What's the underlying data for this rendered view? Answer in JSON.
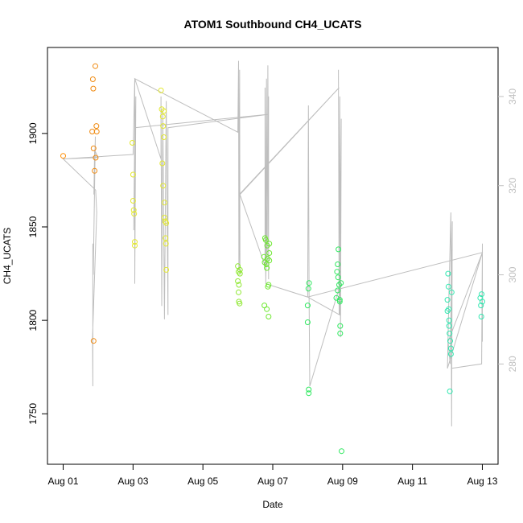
{
  "chart_data": {
    "type": "scatter",
    "title": "ATOM1 Southbound CH4_UCATS",
    "xlabel": "Date",
    "ylabel": "CH4_UCATS",
    "x_ticks": [
      "Aug 01",
      "Aug 03",
      "Aug 05",
      "Aug 07",
      "Aug 09",
      "Aug 11",
      "Aug 13"
    ],
    "x_tick_days": [
      1,
      3,
      5,
      7,
      9,
      11,
      13
    ],
    "xlim": [
      0.55,
      13.45
    ],
    "ylim": [
      1723,
      1946
    ],
    "y_ticks": [
      1750,
      1800,
      1850,
      1900
    ],
    "y2lim": [
      257.5,
      351
    ],
    "y2_ticks": [
      280,
      300,
      320,
      340
    ],
    "line_color": "#bebebe",
    "points": [
      {
        "x": 1.0,
        "y": 1888,
        "color": "#ff8c00"
      },
      {
        "x": 1.83,
        "y": 1901,
        "color": "#f08a10"
      },
      {
        "x": 1.85,
        "y": 1929,
        "color": "#f08a10"
      },
      {
        "x": 1.86,
        "y": 1924,
        "color": "#f08a10"
      },
      {
        "x": 1.87,
        "y": 1892,
        "color": "#f08a10"
      },
      {
        "x": 1.9,
        "y": 1880,
        "color": "#f08a10"
      },
      {
        "x": 1.92,
        "y": 1936,
        "color": "#f08a10"
      },
      {
        "x": 1.93,
        "y": 1887,
        "color": "#f08a10"
      },
      {
        "x": 1.95,
        "y": 1904,
        "color": "#f08a10"
      },
      {
        "x": 1.96,
        "y": 1901,
        "color": "#f08a10"
      },
      {
        "x": 1.87,
        "y": 1789,
        "color": "#f08a10"
      },
      {
        "x": 2.98,
        "y": 1895,
        "color": "#e3e830"
      },
      {
        "x": 3.0,
        "y": 1878,
        "color": "#e3e830"
      },
      {
        "x": 3.0,
        "y": 1864,
        "color": "#e3e830"
      },
      {
        "x": 3.02,
        "y": 1859,
        "color": "#e3e830"
      },
      {
        "x": 3.03,
        "y": 1857,
        "color": "#e3e830"
      },
      {
        "x": 3.05,
        "y": 1842,
        "color": "#e3e830"
      },
      {
        "x": 3.05,
        "y": 1840,
        "color": "#e3e830"
      },
      {
        "x": 3.8,
        "y": 1923,
        "color": "#e3e830"
      },
      {
        "x": 3.82,
        "y": 1913,
        "color": "#e3e830"
      },
      {
        "x": 3.85,
        "y": 1909,
        "color": "#e3e830"
      },
      {
        "x": 3.86,
        "y": 1904,
        "color": "#e3e830"
      },
      {
        "x": 3.88,
        "y": 1898,
        "color": "#e3e830"
      },
      {
        "x": 3.88,
        "y": 1912,
        "color": "#e3e830"
      },
      {
        "x": 3.84,
        "y": 1884,
        "color": "#e3e830"
      },
      {
        "x": 3.86,
        "y": 1872,
        "color": "#e3e830"
      },
      {
        "x": 3.9,
        "y": 1863,
        "color": "#e3e830"
      },
      {
        "x": 3.9,
        "y": 1855,
        "color": "#e3e830"
      },
      {
        "x": 3.92,
        "y": 1853,
        "color": "#e3e830"
      },
      {
        "x": 3.93,
        "y": 1844,
        "color": "#e3e830"
      },
      {
        "x": 3.94,
        "y": 1841,
        "color": "#e3e830"
      },
      {
        "x": 3.95,
        "y": 1827,
        "color": "#e3e830"
      },
      {
        "x": 3.95,
        "y": 1852,
        "color": "#e3e830"
      },
      {
        "x": 6.0,
        "y": 1829,
        "color": "#8ee830"
      },
      {
        "x": 6.0,
        "y": 1821,
        "color": "#8ee830"
      },
      {
        "x": 6.02,
        "y": 1826,
        "color": "#8ee830"
      },
      {
        "x": 6.03,
        "y": 1819,
        "color": "#8ee830"
      },
      {
        "x": 6.02,
        "y": 1815,
        "color": "#8ee830"
      },
      {
        "x": 6.03,
        "y": 1810,
        "color": "#8ee830"
      },
      {
        "x": 6.05,
        "y": 1809,
        "color": "#8ee830"
      },
      {
        "x": 6.06,
        "y": 1825,
        "color": "#8ee830"
      },
      {
        "x": 6.06,
        "y": 1827,
        "color": "#8ee830"
      },
      {
        "x": 6.75,
        "y": 1834,
        "color": "#6ee830"
      },
      {
        "x": 6.77,
        "y": 1831,
        "color": "#6ee830"
      },
      {
        "x": 6.78,
        "y": 1844,
        "color": "#6ee830"
      },
      {
        "x": 6.8,
        "y": 1843,
        "color": "#6ee830"
      },
      {
        "x": 6.82,
        "y": 1830,
        "color": "#6ee830"
      },
      {
        "x": 6.83,
        "y": 1828,
        "color": "#6ee830"
      },
      {
        "x": 6.84,
        "y": 1840,
        "color": "#6ee830"
      },
      {
        "x": 6.85,
        "y": 1833,
        "color": "#6ee830"
      },
      {
        "x": 6.86,
        "y": 1818,
        "color": "#6ee830"
      },
      {
        "x": 6.88,
        "y": 1819,
        "color": "#6ee830"
      },
      {
        "x": 6.9,
        "y": 1836,
        "color": "#6ee830"
      },
      {
        "x": 6.9,
        "y": 1832,
        "color": "#6ee830"
      },
      {
        "x": 6.9,
        "y": 1841,
        "color": "#6ee830"
      },
      {
        "x": 6.76,
        "y": 1808,
        "color": "#6ee830"
      },
      {
        "x": 6.83,
        "y": 1806,
        "color": "#6ee830"
      },
      {
        "x": 6.88,
        "y": 1802,
        "color": "#6ee830"
      },
      {
        "x": 8.0,
        "y": 1808,
        "color": "#30e860"
      },
      {
        "x": 8.0,
        "y": 1799,
        "color": "#30e860"
      },
      {
        "x": 8.02,
        "y": 1817,
        "color": "#30e860"
      },
      {
        "x": 8.04,
        "y": 1820,
        "color": "#30e860"
      },
      {
        "x": 8.03,
        "y": 1763,
        "color": "#30e860"
      },
      {
        "x": 8.03,
        "y": 1761,
        "color": "#30e860"
      },
      {
        "x": 8.82,
        "y": 1812,
        "color": "#30e860"
      },
      {
        "x": 8.84,
        "y": 1826,
        "color": "#30e860"
      },
      {
        "x": 8.86,
        "y": 1830,
        "color": "#30e860"
      },
      {
        "x": 8.88,
        "y": 1838,
        "color": "#30e860"
      },
      {
        "x": 8.87,
        "y": 1823,
        "color": "#30e860"
      },
      {
        "x": 8.9,
        "y": 1819,
        "color": "#30e860"
      },
      {
        "x": 8.92,
        "y": 1811,
        "color": "#30e860"
      },
      {
        "x": 8.92,
        "y": 1810,
        "color": "#30e860"
      },
      {
        "x": 8.93,
        "y": 1797,
        "color": "#30e860"
      },
      {
        "x": 8.93,
        "y": 1793,
        "color": "#30e860"
      },
      {
        "x": 8.95,
        "y": 1820,
        "color": "#30e860"
      },
      {
        "x": 8.86,
        "y": 1816,
        "color": "#30e860"
      },
      {
        "x": 8.97,
        "y": 1730,
        "color": "#30e860"
      },
      {
        "x": 12.0,
        "y": 1811,
        "color": "#30e8b0"
      },
      {
        "x": 12.02,
        "y": 1825,
        "color": "#30e8b0"
      },
      {
        "x": 12.03,
        "y": 1818,
        "color": "#30e8b0"
      },
      {
        "x": 12.04,
        "y": 1806,
        "color": "#30e8b0"
      },
      {
        "x": 12.05,
        "y": 1800,
        "color": "#30e8b0"
      },
      {
        "x": 12.05,
        "y": 1797,
        "color": "#30e8b0"
      },
      {
        "x": 12.06,
        "y": 1793,
        "color": "#30e8b0"
      },
      {
        "x": 12.08,
        "y": 1789,
        "color": "#30e8b0"
      },
      {
        "x": 12.1,
        "y": 1785,
        "color": "#30e8b0"
      },
      {
        "x": 12.1,
        "y": 1782,
        "color": "#30e8b0"
      },
      {
        "x": 12.12,
        "y": 1815,
        "color": "#30e8b0"
      },
      {
        "x": 12.0,
        "y": 1805,
        "color": "#30e8b0"
      },
      {
        "x": 12.07,
        "y": 1762,
        "color": "#30e8b0"
      },
      {
        "x": 12.94,
        "y": 1812,
        "color": "#30e8b0"
      },
      {
        "x": 12.96,
        "y": 1808,
        "color": "#30e8b0"
      },
      {
        "x": 12.97,
        "y": 1802,
        "color": "#30e8b0"
      },
      {
        "x": 12.98,
        "y": 1814,
        "color": "#30e8b0"
      },
      {
        "x": 13.0,
        "y": 1810,
        "color": "#30e8b0"
      }
    ],
    "right_axis_line": [
      [
        1.0,
        326
      ],
      [
        2.0,
        326.3
      ],
      [
        1.9,
        328
      ],
      [
        1.88,
        318
      ],
      [
        1.92,
        331
      ],
      [
        1.86,
        300
      ],
      [
        1.85,
        307
      ],
      [
        1.85,
        275
      ],
      [
        1.84,
        286
      ],
      [
        1.96,
        314
      ],
      [
        1.93,
        319
      ],
      [
        1.0,
        326
      ],
      [
        3.0,
        327
      ],
      [
        3.05,
        344
      ],
      [
        3.05,
        298
      ],
      [
        3.08,
        340
      ],
      [
        3.02,
        310
      ],
      [
        3.05,
        333
      ],
      [
        6.87,
        336
      ],
      [
        4.0,
        333
      ],
      [
        4.0,
        291
      ],
      [
        3.95,
        339
      ],
      [
        3.9,
        290
      ],
      [
        3.85,
        337
      ],
      [
        3.82,
        293
      ],
      [
        3.8,
        340
      ],
      [
        3.8,
        326
      ],
      [
        3.05,
        344
      ],
      [
        6.0,
        332
      ],
      [
        6.02,
        348
      ],
      [
        6.03,
        301
      ],
      [
        6.05,
        346
      ],
      [
        6.06,
        300
      ],
      [
        6.04,
        318
      ],
      [
        8.9,
        342
      ],
      [
        6.06,
        318
      ],
      [
        6.78,
        302
      ],
      [
        6.78,
        342
      ],
      [
        6.8,
        298
      ],
      [
        6.82,
        344
      ],
      [
        6.84,
        302
      ],
      [
        6.86,
        347
      ],
      [
        6.88,
        299
      ],
      [
        6.88,
        340
      ],
      [
        6.8,
        298
      ],
      [
        8.0,
        295
      ],
      [
        8.02,
        338
      ],
      [
        8.04,
        296
      ],
      [
        8.06,
        275
      ],
      [
        8.9,
        297
      ],
      [
        8.88,
        346
      ],
      [
        8.9,
        291
      ],
      [
        8.92,
        340
      ],
      [
        8.94,
        286
      ],
      [
        8.96,
        335
      ],
      [
        8.92,
        291
      ],
      [
        8.0,
        295
      ],
      [
        13.0,
        305
      ],
      [
        12.0,
        279
      ],
      [
        12.05,
        298
      ],
      [
        12.1,
        314
      ],
      [
        12.12,
        266
      ],
      [
        12.14,
        312
      ],
      [
        12.08,
        280
      ],
      [
        12.02,
        285
      ],
      [
        13.0,
        305
      ],
      [
        13.0,
        285
      ],
      [
        13.0,
        307
      ],
      [
        12.98,
        280
      ],
      [
        12.1,
        279
      ]
    ]
  }
}
